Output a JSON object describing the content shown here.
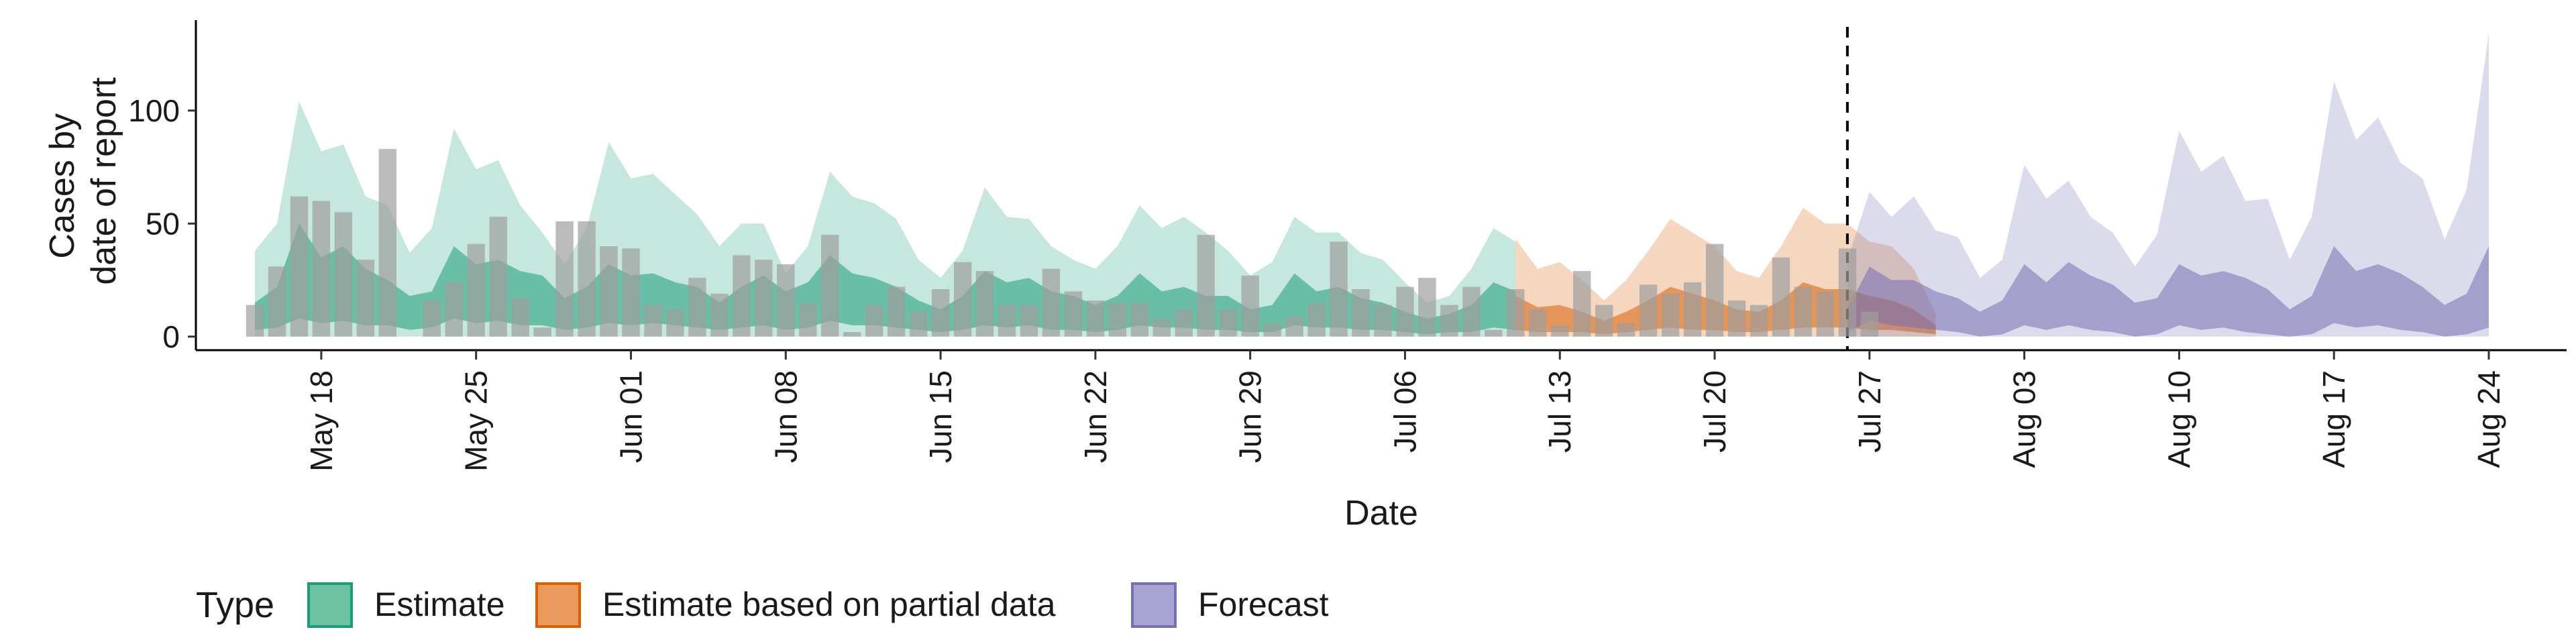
{
  "chart_data": {
    "type": "area",
    "title": "",
    "xlabel": "Date",
    "ylabel_lines": [
      "Cases by",
      "date of report"
    ],
    "ylim": [
      -6,
      140
    ],
    "yticks": [
      0,
      50,
      100
    ],
    "x_start": "2021-05-15",
    "x_end": "2021-08-24",
    "xticks": [
      {
        "date": "2021-05-18",
        "label": "May 18"
      },
      {
        "date": "2021-05-25",
        "label": "May 25"
      },
      {
        "date": "2021-06-01",
        "label": "Jun 01"
      },
      {
        "date": "2021-06-08",
        "label": "Jun 08"
      },
      {
        "date": "2021-06-15",
        "label": "Jun 15"
      },
      {
        "date": "2021-06-22",
        "label": "Jun 22"
      },
      {
        "date": "2021-06-29",
        "label": "Jun 29"
      },
      {
        "date": "2021-07-06",
        "label": "Jul 06"
      },
      {
        "date": "2021-07-13",
        "label": "Jul 13"
      },
      {
        "date": "2021-07-20",
        "label": "Jul 20"
      },
      {
        "date": "2021-07-27",
        "label": "Jul 27"
      },
      {
        "date": "2021-08-03",
        "label": "Aug 03"
      },
      {
        "date": "2021-08-10",
        "label": "Aug 10"
      },
      {
        "date": "2021-08-17",
        "label": "Aug 17"
      },
      {
        "date": "2021-08-24",
        "label": "Aug 24"
      }
    ],
    "forecast_date": "2021-07-26",
    "legend": {
      "title": "Type",
      "position": "bottom",
      "items": [
        {
          "label": "Estimate",
          "fill": "#6cc2a3",
          "stroke": "#1b9e77"
        },
        {
          "label": "Estimate based on partial data",
          "fill": "#eb9a5e",
          "stroke": "#d95f02"
        },
        {
          "label": "Forecast",
          "fill": "#a7a4d3",
          "stroke": "#7570b3"
        }
      ]
    },
    "colors": {
      "estimate": "#1b9e77",
      "partial": "#d95f02",
      "forecast": "#7570b3",
      "bars": "#9e9e9e"
    },
    "series": [
      {
        "name": "Estimate",
        "start": "2021-05-15",
        "outer_upper": [
          38,
          50,
          104,
          82,
          85,
          62,
          58,
          37,
          48,
          92,
          74,
          78,
          58,
          46,
          32,
          48,
          86,
          70,
          72,
          63,
          54,
          40,
          50,
          50,
          28,
          40,
          73,
          62,
          59,
          52,
          34,
          26,
          38,
          66,
          53,
          52,
          40,
          34,
          30,
          40,
          58,
          48,
          53,
          46,
          38,
          27,
          33,
          53,
          46,
          46,
          37,
          34,
          24,
          15,
          18,
          30,
          48,
          42
        ],
        "inner_upper": [
          15,
          22,
          50,
          35,
          40,
          30,
          25,
          18,
          20,
          40,
          32,
          34,
          29,
          27,
          17,
          22,
          32,
          27,
          28,
          24,
          22,
          15,
          22,
          27,
          20,
          24,
          36,
          28,
          26,
          22,
          16,
          12,
          18,
          29,
          24,
          26,
          20,
          18,
          14,
          18,
          28,
          20,
          22,
          18,
          18,
          12,
          14,
          28,
          20,
          22,
          17,
          15,
          11,
          8,
          10,
          14,
          24,
          20
        ],
        "inner_lower": [
          3,
          4,
          8,
          6,
          7,
          5,
          5,
          3,
          4,
          8,
          6,
          7,
          5,
          5,
          3,
          4,
          6,
          5,
          6,
          5,
          4,
          3,
          4,
          5,
          3,
          4,
          7,
          5,
          5,
          4,
          3,
          2,
          3,
          5,
          4,
          5,
          3,
          3,
          2,
          3,
          5,
          4,
          4,
          3,
          3,
          2,
          2,
          5,
          4,
          4,
          3,
          3,
          2,
          1,
          2,
          2,
          4,
          3
        ],
        "outer_lower": [
          0,
          0,
          0,
          0,
          0,
          0,
          0,
          0,
          0,
          0,
          0,
          0,
          0,
          0,
          0,
          0,
          0,
          0,
          0,
          0,
          0,
          0,
          0,
          0,
          0,
          0,
          0,
          0,
          0,
          0,
          0,
          0,
          0,
          0,
          0,
          0,
          0,
          0,
          0,
          0,
          0,
          0,
          0,
          0,
          0,
          0,
          0,
          0,
          0,
          0,
          0,
          0,
          0,
          0,
          0,
          0,
          0,
          0
        ]
      },
      {
        "name": "Estimate based on partial data",
        "start": "2021-07-11",
        "outer_upper": [
          43,
          30,
          33,
          25,
          16,
          25,
          38,
          52,
          46,
          40,
          29,
          26,
          40,
          57,
          50,
          50,
          42,
          40,
          30,
          10
        ],
        "inner_upper": [
          18,
          13,
          14,
          11,
          7,
          11,
          16,
          22,
          19,
          16,
          12,
          11,
          16,
          24,
          21,
          21,
          18,
          16,
          12,
          5
        ],
        "inner_lower": [
          3,
          2,
          2,
          2,
          1,
          2,
          3,
          4,
          3,
          3,
          2,
          2,
          3,
          4,
          4,
          4,
          3,
          3,
          2,
          1
        ],
        "outer_lower": [
          0,
          0,
          0,
          0,
          0,
          0,
          0,
          0,
          0,
          0,
          0,
          0,
          0,
          0,
          0,
          0,
          0,
          0,
          0,
          0
        ]
      },
      {
        "name": "Forecast",
        "start": "2021-07-26",
        "outer_upper": [
          34,
          64,
          53,
          62,
          47,
          44,
          26,
          34,
          76,
          61,
          69,
          53,
          46,
          31,
          45,
          91,
          73,
          80,
          60,
          61,
          34,
          53,
          113,
          87,
          97,
          77,
          70,
          43,
          65,
          134
        ],
        "inner_upper": [
          12,
          31,
          25,
          25,
          20,
          17,
          11,
          16,
          32,
          24,
          33,
          27,
          23,
          15,
          17,
          32,
          27,
          29,
          26,
          21,
          12,
          18,
          40,
          29,
          32,
          28,
          22,
          14,
          19,
          40
        ],
        "inner_lower": [
          2,
          7,
          5,
          4,
          3,
          2,
          0,
          1,
          5,
          3,
          5,
          3,
          2,
          0,
          1,
          5,
          3,
          4,
          2,
          1,
          0,
          1,
          6,
          4,
          5,
          3,
          2,
          0,
          1,
          4
        ],
        "outer_lower": [
          0,
          0,
          0,
          0,
          0,
          0,
          0,
          0,
          0,
          0,
          0,
          0,
          0,
          0,
          0,
          0,
          0,
          0,
          0,
          0,
          0,
          0,
          0,
          0,
          0,
          0,
          0,
          0,
          0,
          0
        ]
      }
    ],
    "bars": {
      "name": "Reported cases",
      "start": "2021-05-15",
      "values": [
        14,
        31,
        62,
        60,
        55,
        34,
        83,
        0,
        16,
        24,
        41,
        53,
        17,
        4,
        51,
        51,
        40,
        39,
        14,
        12,
        26,
        19,
        36,
        34,
        32,
        15,
        45,
        2,
        14,
        22,
        11,
        21,
        33,
        29,
        14,
        14,
        30,
        20,
        16,
        15,
        15,
        8,
        12,
        45,
        12,
        27,
        6,
        9,
        15,
        42,
        21,
        14,
        22,
        26,
        14,
        22,
        3,
        21,
        12,
        5,
        29,
        14,
        6,
        23,
        19,
        24,
        41,
        16,
        14,
        35,
        22,
        20,
        39,
        11
      ]
    }
  }
}
